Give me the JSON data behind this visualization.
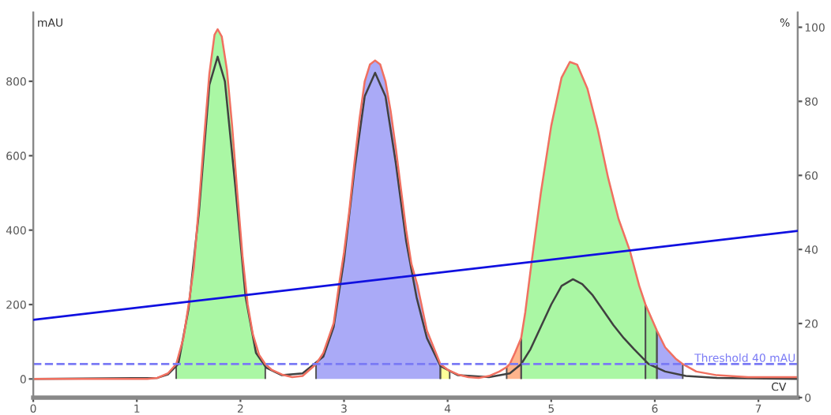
{
  "chart_data": {
    "type": "line",
    "xlabel": "CV",
    "ylabel": "mAU",
    "y2label": "%",
    "xlim": [
      0,
      7.38
    ],
    "xticks": [
      0,
      1,
      2,
      3,
      4,
      5,
      6,
      7
    ],
    "ylim": [
      -50,
      985
    ],
    "yticks": [
      0,
      200,
      400,
      600,
      800
    ],
    "y2lim": [
      0,
      104
    ],
    "y2ticks": [
      0,
      20,
      40,
      60,
      80,
      100
    ],
    "grid": false,
    "legend": false,
    "marker": "none",
    "ref_lines": [
      {
        "axis": "y",
        "value": 40,
        "label": "Threshold 40 mAU",
        "color": "#7a7af5",
        "line_style": "dashed"
      }
    ],
    "series": [
      {
        "type": "area",
        "color": "#aaf7a4",
        "x": [
          1.38,
          1.45,
          1.5,
          1.55,
          1.6,
          1.65,
          1.7,
          1.75,
          1.78,
          1.82,
          1.87,
          1.92,
          1.97,
          2.02,
          2.07,
          2.12,
          2.18,
          2.24
        ],
        "values": [
          40,
          110,
          200,
          300,
          470,
          650,
          820,
          925,
          940,
          920,
          830,
          680,
          500,
          330,
          200,
          120,
          65,
          40
        ]
      },
      {
        "type": "area",
        "color": "#aaaaf7",
        "x": [
          2.73,
          2.8,
          2.9,
          2.95,
          3.0,
          3.05,
          3.1,
          3.15,
          3.2,
          3.25,
          3.3,
          3.35,
          3.4,
          3.45,
          3.5,
          3.55,
          3.6,
          3.65,
          3.71,
          3.8,
          3.93
        ],
        "values": [
          40,
          70,
          150,
          250,
          340,
          450,
          580,
          700,
          800,
          845,
          856,
          845,
          800,
          720,
          620,
          510,
          400,
          310,
          250,
          130,
          40
        ]
      },
      {
        "type": "area",
        "color": "#ffff99",
        "x": [
          3.93,
          4.0,
          4.02
        ],
        "values": [
          40,
          25,
          22
        ]
      },
      {
        "type": "area",
        "color": "#ffb48c",
        "x": [
          4.57,
          4.6,
          4.65,
          4.71
        ],
        "values": [
          32,
          40,
          70,
          110
        ]
      },
      {
        "type": "area",
        "color": "#aaf7a4",
        "x": [
          4.71,
          4.75,
          4.81,
          4.9,
          5.0,
          5.1,
          5.18,
          5.25,
          5.35,
          5.45,
          5.55,
          5.65,
          5.76,
          5.85,
          5.91
        ],
        "values": [
          110,
          180,
          312,
          500,
          680,
          810,
          852,
          845,
          780,
          670,
          540,
          430,
          344,
          250,
          200
        ]
      },
      {
        "type": "area",
        "color": "#9fec99",
        "x": [
          5.91,
          5.96,
          6.02
        ],
        "values": [
          200,
          165,
          130
        ]
      },
      {
        "type": "area",
        "color": "#aaaaf7",
        "x": [
          6.02,
          6.1,
          6.2,
          6.27
        ],
        "values": [
          130,
          85,
          55,
          40
        ]
      },
      {
        "color": "#404040",
        "x": [
          0,
          1.2,
          1.3,
          1.4,
          1.5,
          1.6,
          1.7,
          1.78,
          1.85,
          1.95,
          2.05,
          2.15,
          2.25,
          2.4,
          2.6,
          2.8,
          2.9,
          3.0,
          3.1,
          3.2,
          3.3,
          3.4,
          3.5,
          3.6,
          3.7,
          3.8,
          3.93,
          4.1,
          4.4,
          4.6,
          4.71,
          4.8,
          4.9,
          5.0,
          5.1,
          5.21,
          5.3,
          5.4,
          5.5,
          5.6,
          5.7,
          5.8,
          5.94,
          6.1,
          6.3,
          6.6,
          7.38
        ],
        "values": [
          0,
          3,
          12,
          40,
          190,
          450,
          790,
          866,
          800,
          520,
          220,
          70,
          30,
          10,
          15,
          60,
          140,
          320,
          560,
          760,
          823,
          760,
          580,
          370,
          220,
          110,
          35,
          10,
          5,
          15,
          40,
          80,
          140,
          200,
          250,
          268,
          255,
          225,
          185,
          145,
          110,
          80,
          40,
          20,
          8,
          3,
          0
        ]
      },
      {
        "color": "#f07060",
        "x": [
          0,
          1.1,
          1.2,
          1.3,
          1.38,
          1.45,
          1.5,
          1.55,
          1.6,
          1.65,
          1.7,
          1.75,
          1.78,
          1.82,
          1.87,
          1.92,
          1.97,
          2.02,
          2.07,
          2.12,
          2.18,
          2.24,
          2.3,
          2.4,
          2.5,
          2.6,
          2.73,
          2.8,
          2.9,
          2.95,
          3.0,
          3.05,
          3.1,
          3.15,
          3.2,
          3.25,
          3.3,
          3.35,
          3.4,
          3.45,
          3.5,
          3.55,
          3.6,
          3.65,
          3.71,
          3.8,
          3.93,
          4.0,
          4.02,
          4.1,
          4.2,
          4.3,
          4.4,
          4.5,
          4.57,
          4.6,
          4.65,
          4.71,
          4.75,
          4.81,
          4.9,
          5.0,
          5.1,
          5.18,
          5.25,
          5.35,
          5.45,
          5.55,
          5.65,
          5.76,
          5.85,
          5.91,
          6.02,
          6.1,
          6.2,
          6.27,
          6.4,
          6.6,
          6.9,
          7.38
        ],
        "values": [
          0,
          0,
          3,
          15,
          40,
          110,
          200,
          300,
          470,
          650,
          820,
          925,
          940,
          920,
          830,
          680,
          500,
          330,
          200,
          120,
          65,
          40,
          25,
          12,
          5,
          8,
          40,
          70,
          150,
          250,
          340,
          450,
          580,
          700,
          800,
          845,
          856,
          845,
          800,
          720,
          620,
          510,
          400,
          310,
          250,
          130,
          40,
          25,
          22,
          12,
          5,
          3,
          8,
          20,
          32,
          40,
          70,
          110,
          180,
          312,
          500,
          680,
          810,
          852,
          845,
          780,
          670,
          540,
          430,
          344,
          250,
          200,
          130,
          85,
          55,
          40,
          20,
          10,
          5,
          5
        ]
      },
      {
        "axis": "y2",
        "color": "#1010e0",
        "x": [
          0,
          7.38
        ],
        "values": [
          21,
          45
        ]
      }
    ]
  }
}
